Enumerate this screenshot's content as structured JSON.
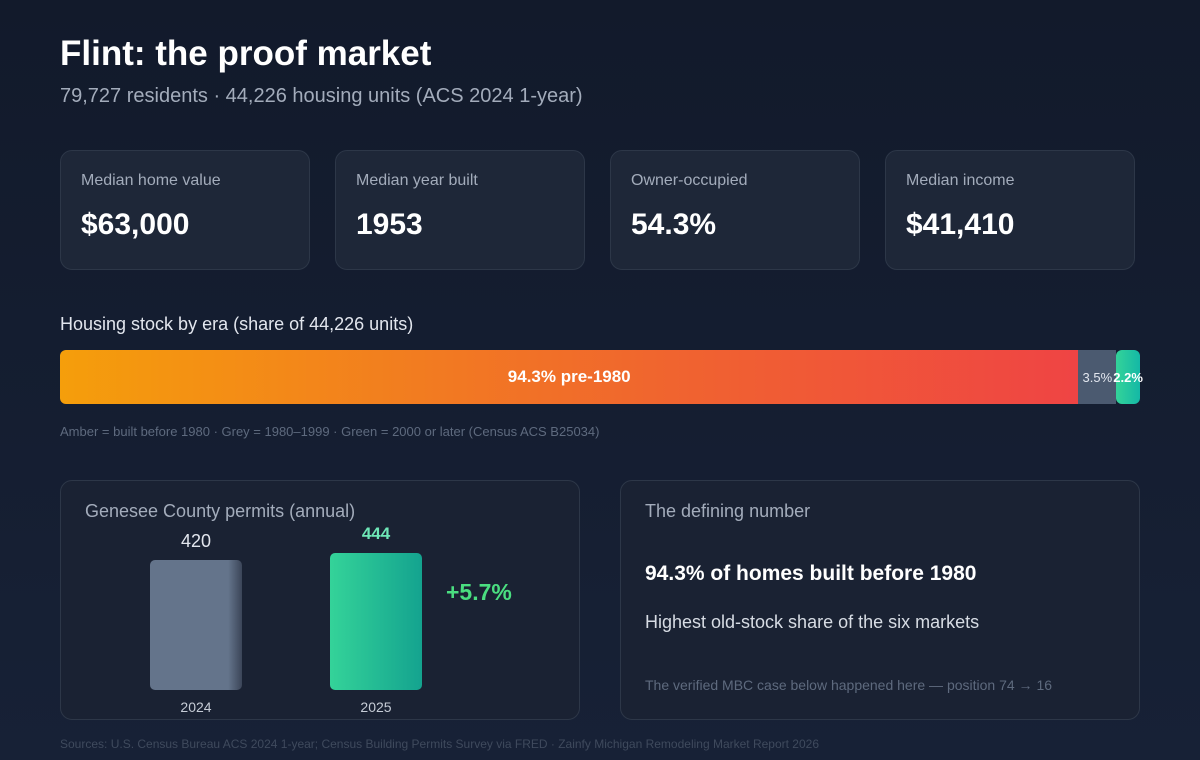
{
  "header": {
    "title": "Flint: the proof market",
    "subtitle": "79,727 residents · 44,226 housing units (ACS 2024 1-year)"
  },
  "stats": [
    {
      "label": "Median home value",
      "value": "$63,000"
    },
    {
      "label": "Median year built",
      "value": "1953"
    },
    {
      "label": "Owner-occupied",
      "value": "54.3%"
    },
    {
      "label": "Median income",
      "value": "$41,410"
    }
  ],
  "housing_stock": {
    "title": "Housing stock by era (share of 44,226 units)",
    "segments": [
      {
        "label": "94.3% pre-1980",
        "share": 94.3,
        "color": "#f59e0b"
      },
      {
        "label": "3.5%",
        "share": 3.5,
        "color": "#4b5a70"
      },
      {
        "label": "2.2%",
        "share": 2.2,
        "color": "#34d399"
      }
    ],
    "legend": "Amber = built before 1980 · Grey = 1980–1999 · Green = 2000 or later (Census ACS B25034)"
  },
  "chart_data": {
    "type": "bar",
    "title": "Genesee County permits (annual)",
    "categories": [
      "2024",
      "2025"
    ],
    "values": [
      420,
      444
    ],
    "value_labels": [
      "420",
      "444"
    ],
    "colors": [
      "#64748b",
      "#34d399"
    ],
    "change_label": "+5.7%",
    "ylim": [
      0,
      444
    ]
  },
  "defining": {
    "title": "The defining number",
    "headline": "94.3% of homes built before 1980",
    "sub": "Highest old-stock share of the six markets",
    "note": "The verified MBC case below happened here — position 74 → 16"
  },
  "footer": "Sources: U.S. Census Bureau ACS 2024 1-year; Census Building Permits Survey via FRED · Zainfy Michigan Remodeling Market Report 2026"
}
